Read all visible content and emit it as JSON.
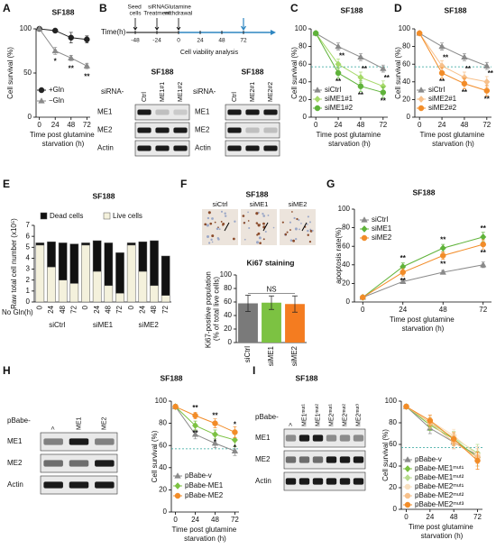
{
  "chart_data": [
    {
      "type": "line",
      "panel": "A",
      "title": "SF188",
      "xlabel": "Time post glutamine starvation (h)",
      "ylabel": "Cell survival (%)",
      "x": [
        0,
        24,
        48,
        72
      ],
      "xlim": [
        -5,
        77
      ],
      "xticks": [
        0,
        24,
        48,
        72
      ],
      "ylim": [
        0,
        100
      ],
      "yticks": [
        0,
        50,
        100
      ],
      "series": [
        {
          "name": "+Gln",
          "color": "#222222",
          "marker": "circle",
          "values": [
            100,
            98,
            90,
            88
          ],
          "errors": [
            1,
            2,
            6,
            4
          ]
        },
        {
          "name": "−Gln",
          "color": "#8a8a8a",
          "marker": "triangle",
          "values": [
            100,
            75,
            67,
            58
          ],
          "errors": [
            1,
            4,
            3,
            3
          ]
        }
      ],
      "annotations": [
        "*",
        "**",
        "**"
      ]
    },
    {
      "type": "line",
      "panel": "C",
      "title": "SF188",
      "xlabel": "Time post glutamine starvation (h)",
      "ylabel": "Cell survival (%)",
      "x": [
        0,
        24,
        48,
        72
      ],
      "xlim": [
        -5,
        77
      ],
      "xticks": [
        0,
        24,
        48,
        72
      ],
      "ylim": [
        0,
        100
      ],
      "yticks": [
        0,
        20,
        40,
        60,
        80,
        100
      ],
      "reference_line": 57,
      "series": [
        {
          "name": "siCtrl",
          "color": "#8a8a8a",
          "marker": "triangle",
          "values": [
            95,
            80,
            68,
            55
          ],
          "errors": [
            2,
            4,
            4,
            4
          ]
        },
        {
          "name": "siME1#1",
          "color": "#a6d96a",
          "marker": "diamond",
          "values": [
            95,
            60,
            45,
            35
          ],
          "errors": [
            2,
            6,
            6,
            6
          ]
        },
        {
          "name": "siME1#2",
          "color": "#5fb33a",
          "marker": "circle",
          "values": [
            95,
            50,
            35,
            28
          ],
          "errors": [
            2,
            6,
            6,
            6
          ]
        }
      ],
      "annotations": [
        "**",
        "**",
        "**",
        "**",
        "**",
        "**"
      ]
    },
    {
      "type": "line",
      "panel": "D",
      "title": "SF188",
      "xlabel": "Time post glutamine starvation (h)",
      "ylabel": "Cell survival (%)",
      "x": [
        0,
        24,
        48,
        72
      ],
      "xlim": [
        -5,
        77
      ],
      "xticks": [
        0,
        24,
        48,
        72
      ],
      "ylim": [
        0,
        100
      ],
      "yticks": [
        0,
        20,
        40,
        60,
        80,
        100
      ],
      "reference_line": 57,
      "series": [
        {
          "name": "siCtrl",
          "color": "#8a8a8a",
          "marker": "triangle",
          "values": [
            95,
            80,
            68,
            58
          ],
          "errors": [
            2,
            4,
            4,
            4
          ]
        },
        {
          "name": "siME2#1",
          "color": "#f7c08a",
          "marker": "diamond",
          "values": [
            95,
            58,
            45,
            40
          ],
          "errors": [
            2,
            6,
            6,
            6
          ]
        },
        {
          "name": "siME2#2",
          "color": "#f28c28",
          "marker": "circle",
          "values": [
            95,
            50,
            38,
            30
          ],
          "errors": [
            2,
            6,
            6,
            6
          ]
        }
      ],
      "annotations": [
        "**",
        "**",
        "**",
        "**",
        "**",
        "**"
      ]
    },
    {
      "type": "stacked_bar",
      "panel": "E",
      "title": "SF188",
      "ylabel": "Raw total cell number (x10⁵)",
      "xlabel": "No Gln(h)",
      "categories": [
        "0",
        "24",
        "48",
        "72",
        "0",
        "24",
        "48",
        "72",
        "0",
        "24",
        "48",
        "72"
      ],
      "groups": [
        "siCtrl",
        "siME1",
        "siME2"
      ],
      "ylim": [
        0,
        7
      ],
      "yticks": [
        0,
        1,
        2,
        3,
        4,
        5,
        6,
        7
      ],
      "series": [
        {
          "name": "Live cells",
          "color": "#f4f1dc",
          "values": [
            5.2,
            3.2,
            2.0,
            1.7,
            5.2,
            2.8,
            1.5,
            0.8,
            5.2,
            2.8,
            1.5,
            0.6
          ]
        },
        {
          "name": "Dead cells",
          "color": "#111111",
          "values": [
            0.2,
            2.3,
            3.4,
            3.6,
            0.2,
            2.8,
            3.9,
            3.7,
            0.2,
            2.7,
            4.1,
            3.6
          ]
        }
      ]
    },
    {
      "type": "bar",
      "panel": "F",
      "title": "Ki67 staining",
      "ylabel": "Ki67-positive population (% of total live cells)",
      "categories": [
        "siCtrl",
        "siME1",
        "siME2"
      ],
      "values": [
        58,
        59,
        57
      ],
      "errors": [
        12,
        10,
        12
      ],
      "colors": [
        "#7a7a7a",
        "#7cc242",
        "#f47c20"
      ],
      "ylim": [
        0,
        100
      ],
      "yticks": [
        0,
        20,
        40,
        60,
        80,
        100
      ],
      "annotations": [
        "NS"
      ]
    },
    {
      "type": "line",
      "panel": "G",
      "title": "SF188",
      "xlabel": "Time post glutamine starvation (h)",
      "ylabel": "apoptosis rate(%)",
      "x": [
        0,
        24,
        48,
        72
      ],
      "xlim": [
        -5,
        77
      ],
      "xticks": [
        0,
        24,
        48,
        72
      ],
      "ylim": [
        0,
        100
      ],
      "yticks": [
        0,
        20,
        40,
        60,
        80,
        100
      ],
      "series": [
        {
          "name": "siCtrl",
          "color": "#8a8a8a",
          "marker": "triangle",
          "values": [
            5,
            22,
            32,
            40
          ],
          "errors": [
            1,
            2,
            2,
            3
          ]
        },
        {
          "name": "siME1",
          "color": "#5fb33a",
          "marker": "diamond",
          "values": [
            5,
            38,
            58,
            70
          ],
          "errors": [
            1,
            4,
            4,
            5
          ]
        },
        {
          "name": "siME2",
          "color": "#f28c28",
          "marker": "circle",
          "values": [
            5,
            32,
            50,
            62
          ],
          "errors": [
            1,
            4,
            4,
            5
          ]
        }
      ],
      "annotations": [
        "**",
        "**",
        "**",
        "**",
        "**",
        "**"
      ]
    },
    {
      "type": "line",
      "panel": "H",
      "title": "SF188",
      "xlabel": "Time post glutamine starvation (h)",
      "ylabel": "Cell survival (%)",
      "x": [
        0,
        24,
        48,
        72
      ],
      "xlim": [
        -5,
        77
      ],
      "xticks": [
        0,
        24,
        48,
        72
      ],
      "ylim": [
        0,
        100
      ],
      "yticks": [
        0,
        20,
        40,
        60,
        80,
        100
      ],
      "reference_line": 57,
      "series": [
        {
          "name": "pBabe-v",
          "color": "#8a8a8a",
          "marker": "triangle",
          "values": [
            95,
            70,
            62,
            55
          ],
          "errors": [
            2,
            4,
            4,
            4
          ]
        },
        {
          "name": "pBabe-ME1",
          "color": "#7cc242",
          "marker": "diamond",
          "values": [
            95,
            78,
            70,
            65
          ],
          "errors": [
            2,
            4,
            4,
            6
          ]
        },
        {
          "name": "pBabe-ME2",
          "color": "#f28c28",
          "marker": "circle",
          "values": [
            95,
            87,
            80,
            72
          ],
          "errors": [
            2,
            3,
            4,
            5
          ]
        }
      ],
      "annotations": [
        "**",
        "**",
        "*",
        "**",
        "*",
        "*"
      ]
    },
    {
      "type": "line",
      "panel": "I",
      "title": "SF188",
      "xlabel": "Time post glutamine starvation (h)",
      "ylabel": "Cell survival (%)",
      "x": [
        0,
        24,
        48,
        72
      ],
      "xlim": [
        -5,
        77
      ],
      "xticks": [
        0,
        24,
        48,
        72
      ],
      "ylim": [
        0,
        100
      ],
      "yticks": [
        0,
        20,
        40,
        60,
        80,
        100
      ],
      "reference_line": 57,
      "series": [
        {
          "name": "pBabe-v",
          "color": "#8a8a8a",
          "marker": "triangle",
          "values": [
            95,
            75,
            62,
            50
          ],
          "errors": [
            2,
            5,
            6,
            8
          ]
        },
        {
          "name": "pBabe-ME1ᵐᵘᵗ¹",
          "color": "#7cc242",
          "marker": "diamond",
          "values": [
            95,
            78,
            65,
            48
          ],
          "errors": [
            2,
            5,
            6,
            8
          ]
        },
        {
          "name": "pBabe-ME1ᵐᵘᵗ²",
          "color": "#b8dc8e",
          "marker": "diamond",
          "values": [
            95,
            80,
            66,
            52
          ],
          "errors": [
            2,
            5,
            6,
            8
          ]
        },
        {
          "name": "pBabe-ME2ᵐᵘᵗ¹",
          "color": "#f9e0c0",
          "marker": "circle",
          "values": [
            95,
            82,
            68,
            50
          ],
          "errors": [
            2,
            5,
            6,
            8
          ]
        },
        {
          "name": "pBabe-ME2ᵐᵘᵗ²",
          "color": "#f7c08a",
          "marker": "circle",
          "values": [
            95,
            80,
            62,
            48
          ],
          "errors": [
            2,
            5,
            6,
            8
          ]
        },
        {
          "name": "pBabe-ME2ᵐᵘᵗ³",
          "color": "#f28c28",
          "marker": "circle",
          "values": [
            95,
            82,
            65,
            45
          ],
          "errors": [
            2,
            5,
            6,
            8
          ]
        }
      ]
    }
  ],
  "timeline": {
    "panel": "B",
    "axis_label": "Time(h)",
    "ticks": [
      -48,
      -24,
      0,
      24,
      48,
      72
    ],
    "events": [
      "Seed cells",
      "siRNA Treatment",
      "Glutamine withdrawal"
    ],
    "caption": "Cell viability analysis"
  },
  "images": {
    "title": "SF188",
    "labels": [
      "siCtrl",
      "siME1",
      "siME2"
    ]
  },
  "blots": [
    {
      "title": "SF188",
      "lane_title": "siRNA-",
      "lanes": [
        "Ctrl",
        "ME1#1",
        "ME1#2"
      ],
      "rows": [
        "ME1",
        "ME2",
        "Actin"
      ]
    },
    {
      "title": "SF188",
      "lane_title": "siRNA-",
      "lanes": [
        "Ctrl",
        "ME2#1",
        "ME2#2"
      ],
      "rows": [
        "ME1",
        "ME2",
        "Actin"
      ]
    },
    {
      "lane_title": "pBabe-",
      "lanes": [
        ">",
        "ME1",
        "ME2"
      ],
      "rows": [
        "ME1",
        "ME2",
        "Actin"
      ]
    },
    {
      "lane_title": "pBabe-",
      "lanes": [
        ">",
        "ME1ᵐᵘᵗ¹",
        "ME1ᵐᵘᵗ²",
        "ME2ᵐᵘᵗ¹",
        "ME2ᵐᵘᵗ²",
        "ME2ᵐᵘᵗ³"
      ],
      "rows": [
        "ME1",
        "ME2",
        "Actin"
      ]
    }
  ]
}
